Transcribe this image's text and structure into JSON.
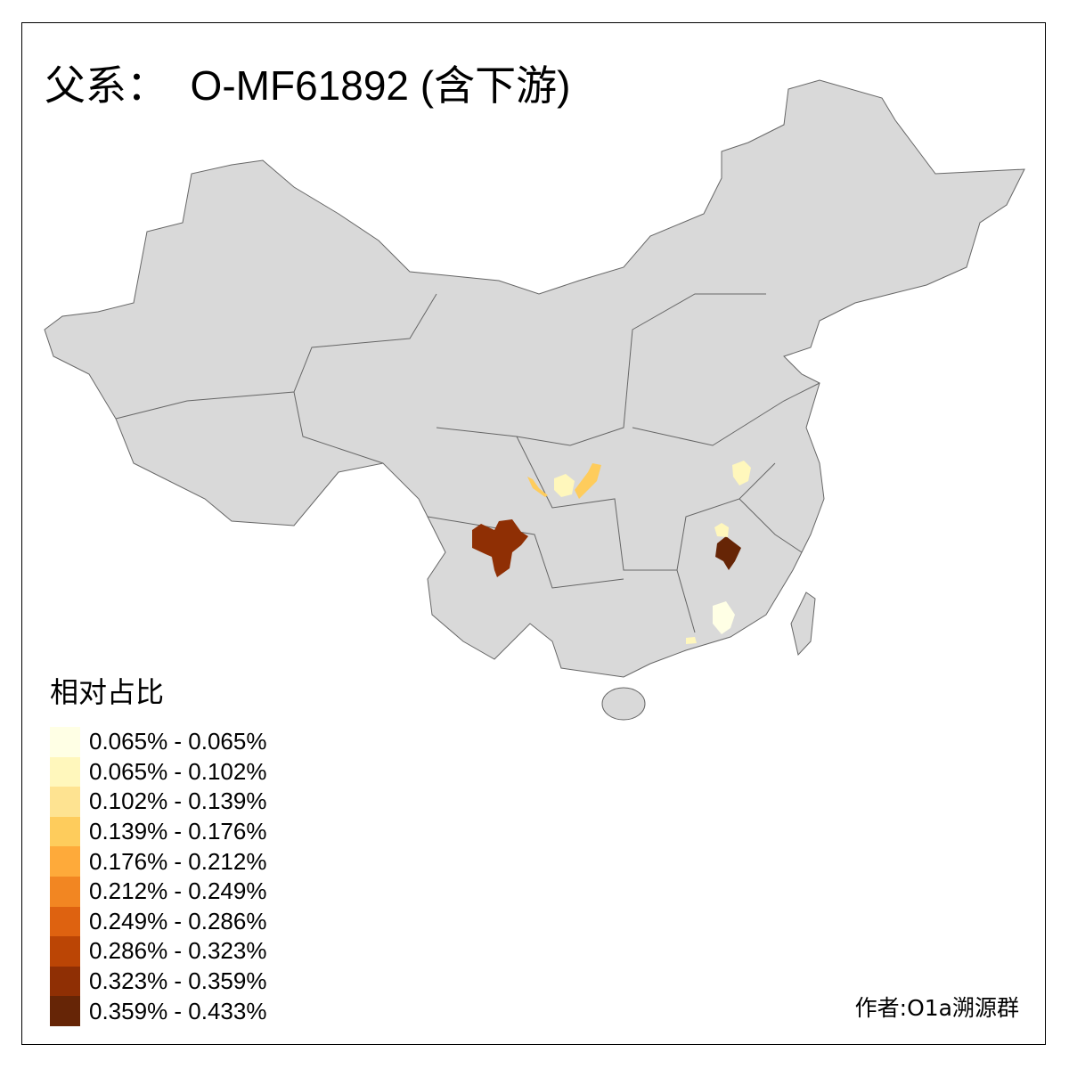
{
  "title": "父系：  O-MF61892 (含下游)",
  "legend": {
    "title": "相对占比",
    "items": [
      {
        "label": "0.065% - 0.065%",
        "color": "#FFFFE5"
      },
      {
        "label": "0.065% - 0.102%",
        "color": "#FFF7BC"
      },
      {
        "label": "0.102% - 0.139%",
        "color": "#FEE391"
      },
      {
        "label": "0.139% - 0.176%",
        "color": "#FECC5C"
      },
      {
        "label": "0.176% - 0.212%",
        "color": "#FEAA3A"
      },
      {
        "label": "0.212% - 0.249%",
        "color": "#F28622"
      },
      {
        "label": "0.249% - 0.286%",
        "color": "#DE6210"
      },
      {
        "label": "0.286% - 0.323%",
        "color": "#BB4505"
      },
      {
        "label": "0.323% - 0.359%",
        "color": "#8F2F04"
      },
      {
        "label": "0.359% - 0.433%",
        "color": "#662506"
      }
    ]
  },
  "map": {
    "base_color": "#D9D9D9",
    "border_color": "#666666",
    "no_data_color": "#D9D9D9"
  },
  "credit": "作者:O1a溯源群"
}
